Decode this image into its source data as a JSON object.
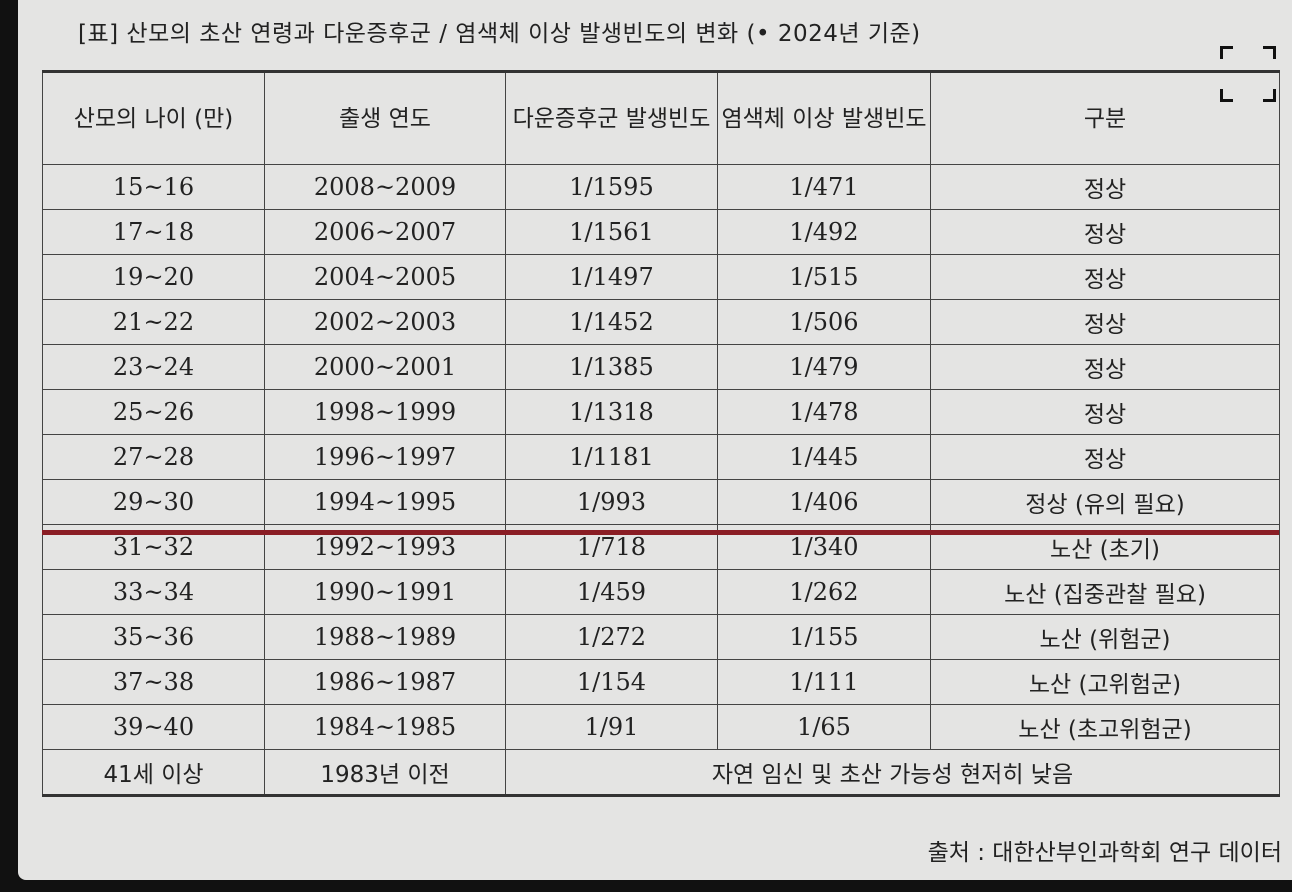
{
  "title": "[표] 산모의 초산 연령과 다운증후군 / 염색체 이상 발생빈도의 변화 (• 2024년 기준)",
  "headers": [
    "산모의 나이 (만)",
    "출생 연도",
    "다운증후군 발생빈도",
    "염색체 이상 발생빈도",
    "구분"
  ],
  "rows": [
    {
      "age": "15~16",
      "year": "2008~2009",
      "down": "1/1595",
      "chrom": "1/471",
      "class": "정상"
    },
    {
      "age": "17~18",
      "year": "2006~2007",
      "down": "1/1561",
      "chrom": "1/492",
      "class": "정상"
    },
    {
      "age": "19~20",
      "year": "2004~2005",
      "down": "1/1497",
      "chrom": "1/515",
      "class": "정상"
    },
    {
      "age": "21~22",
      "year": "2002~2003",
      "down": "1/1452",
      "chrom": "1/506",
      "class": "정상"
    },
    {
      "age": "23~24",
      "year": "2000~2001",
      "down": "1/1385",
      "chrom": "1/479",
      "class": "정상"
    },
    {
      "age": "25~26",
      "year": "1998~1999",
      "down": "1/1318",
      "chrom": "1/478",
      "class": "정상"
    },
    {
      "age": "27~28",
      "year": "1996~1997",
      "down": "1/1181",
      "chrom": "1/445",
      "class": "정상"
    },
    {
      "age": "29~30",
      "year": "1994~1995",
      "down": "1/993",
      "chrom": "1/406",
      "class": "정상 (유의 필요)"
    },
    {
      "age": "31~32",
      "year": "1992~1993",
      "down": "1/718",
      "chrom": "1/340",
      "class": "노산 (초기)"
    },
    {
      "age": "33~34",
      "year": "1990~1991",
      "down": "1/459",
      "chrom": "1/262",
      "class": "노산 (집중관찰 필요)"
    },
    {
      "age": "35~36",
      "year": "1988~1989",
      "down": "1/272",
      "chrom": "1/155",
      "class": "노산 (위험군)"
    },
    {
      "age": "37~38",
      "year": "1986~1987",
      "down": "1/154",
      "chrom": "1/111",
      "class": "노산 (고위험군)"
    },
    {
      "age": "39~40",
      "year": "1984~1985",
      "down": "1/91",
      "chrom": "1/65",
      "class": "노산 (초고위험군)"
    }
  ],
  "last_row": {
    "age": "41세 이상",
    "year": "1983년 이전",
    "note": "자연 임신 및 초산 가능성 현저히 낮음"
  },
  "source": "출처 : 대한산부인과학회 연구 데이터",
  "divider_color": "#8a1d24",
  "icons": {
    "expand": "expand-corners-icon"
  }
}
